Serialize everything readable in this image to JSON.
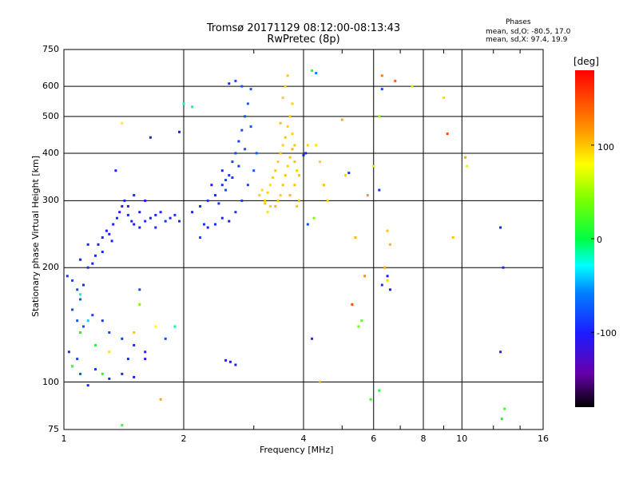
{
  "title_line1": "Tromsø 20171129 08:12:00-08:13:43",
  "title_line2": "RwPretec (8p)",
  "stats": {
    "heading": "Phases",
    "line_o": "mean, sd,O: -80.5, 17.0",
    "line_x": "mean, sd,X:  97.4, 19.9"
  },
  "colorbar": {
    "unit": "[deg]",
    "tick_labels": [
      "100",
      "0",
      "-100"
    ],
    "range": [
      -180,
      180
    ]
  },
  "chart_data": {
    "type": "scatter",
    "title": "Tromsø 20171129 08:12:00-08:13:43",
    "subtitle": "RwPretec (8p)",
    "xlabel": "Frequency [MHz]",
    "ylabel": "Stationary phase Virtual Height [km]",
    "xscale": "log",
    "yscale": "log",
    "xlim": [
      1,
      16
    ],
    "ylim": [
      75,
      750
    ],
    "xticks": [
      "1",
      "2",
      "4",
      "6",
      "8",
      "10",
      "16"
    ],
    "xtick_values": [
      1,
      2,
      4,
      6,
      8,
      10,
      16
    ],
    "yticks": [
      "75",
      "100",
      "200",
      "300",
      "400",
      "500",
      "600",
      "750"
    ],
    "ytick_values": [
      75,
      100,
      200,
      300,
      400,
      500,
      600,
      750
    ],
    "grid": true,
    "colorbar_label": "[deg]",
    "series": [
      {
        "name": "O",
        "points": [
          [
            1.02,
            190,
            -90
          ],
          [
            1.05,
            185,
            -85
          ],
          [
            1.08,
            175,
            -80
          ],
          [
            1.1,
            165,
            -75
          ],
          [
            1.12,
            180,
            -95
          ],
          [
            1.15,
            200,
            -90
          ],
          [
            1.18,
            205,
            -100
          ],
          [
            1.2,
            215,
            -95
          ],
          [
            1.22,
            230,
            -100
          ],
          [
            1.25,
            240,
            -95
          ],
          [
            1.28,
            250,
            -105
          ],
          [
            1.3,
            245,
            -100
          ],
          [
            1.33,
            260,
            -100
          ],
          [
            1.36,
            270,
            -95
          ],
          [
            1.38,
            280,
            -105
          ],
          [
            1.4,
            290,
            -110
          ],
          [
            1.42,
            300,
            -100
          ],
          [
            1.45,
            275,
            -95
          ],
          [
            1.48,
            265,
            -100
          ],
          [
            1.5,
            260,
            -105
          ],
          [
            1.55,
            255,
            -100
          ],
          [
            1.6,
            265,
            -95
          ],
          [
            1.65,
            270,
            -100
          ],
          [
            1.7,
            275,
            -100
          ],
          [
            1.75,
            280,
            -95
          ],
          [
            1.8,
            265,
            -90
          ],
          [
            1.85,
            270,
            -95
          ],
          [
            1.9,
            275,
            -90
          ],
          [
            1.95,
            265,
            -95
          ],
          [
            1.35,
            360,
            -100
          ],
          [
            1.5,
            310,
            -95
          ],
          [
            1.1,
            210,
            -100
          ],
          [
            1.15,
            230,
            -100
          ],
          [
            1.25,
            220,
            -95
          ],
          [
            1.32,
            235,
            -100
          ],
          [
            1.45,
            290,
            -110
          ],
          [
            1.55,
            280,
            -100
          ],
          [
            1.6,
            300,
            -105
          ],
          [
            1.7,
            255,
            -95
          ],
          [
            1.05,
            155,
            -80
          ],
          [
            1.08,
            145,
            -75
          ],
          [
            1.12,
            140,
            -80
          ],
          [
            1.18,
            150,
            -85
          ],
          [
            1.25,
            145,
            -90
          ],
          [
            1.3,
            135,
            -85
          ],
          [
            1.4,
            130,
            -90
          ],
          [
            1.5,
            125,
            -95
          ],
          [
            1.6,
            120,
            -100
          ],
          [
            1.05,
            110,
            -85
          ],
          [
            1.1,
            105,
            -75
          ],
          [
            1.2,
            108,
            -90
          ],
          [
            1.3,
            102,
            -95
          ],
          [
            1.4,
            105,
            -95
          ],
          [
            1.5,
            103,
            -100
          ],
          [
            1.6,
            115,
            -105
          ],
          [
            1.15,
            98,
            -100
          ],
          [
            1.03,
            120,
            -95
          ],
          [
            1.08,
            115,
            -85
          ],
          [
            1.45,
            115,
            -95
          ],
          [
            1.55,
            175,
            -85
          ],
          [
            1.65,
            440,
            -100
          ],
          [
            1.8,
            130,
            -80
          ],
          [
            1.95,
            455,
            -100
          ],
          [
            2.1,
            280,
            -100
          ],
          [
            2.2,
            290,
            -95
          ],
          [
            2.3,
            300,
            -90
          ],
          [
            2.4,
            310,
            -95
          ],
          [
            2.5,
            330,
            -90
          ],
          [
            2.55,
            340,
            -85
          ],
          [
            2.6,
            350,
            -90
          ],
          [
            2.65,
            380,
            -85
          ],
          [
            2.7,
            400,
            -80
          ],
          [
            2.75,
            430,
            -85
          ],
          [
            2.8,
            460,
            -80
          ],
          [
            2.85,
            500,
            -75
          ],
          [
            2.9,
            540,
            -70
          ],
          [
            2.95,
            590,
            -70
          ],
          [
            2.6,
            610,
            -95
          ],
          [
            2.7,
            620,
            -80
          ],
          [
            2.8,
            600,
            -75
          ],
          [
            2.5,
            270,
            -95
          ],
          [
            2.6,
            265,
            -100
          ],
          [
            2.7,
            280,
            -90
          ],
          [
            2.8,
            300,
            -85
          ],
          [
            2.9,
            330,
            -80
          ],
          [
            3.0,
            360,
            -75
          ],
          [
            3.05,
            400,
            -70
          ],
          [
            2.4,
            260,
            -95
          ],
          [
            2.3,
            255,
            -100
          ],
          [
            2.25,
            260,
            -90
          ],
          [
            2.45,
            295,
            -95
          ],
          [
            2.55,
            320,
            -85
          ],
          [
            2.65,
            345,
            -90
          ],
          [
            2.75,
            370,
            -85
          ],
          [
            2.85,
            410,
            -80
          ],
          [
            2.95,
            470,
            -75
          ],
          [
            2.62,
            113,
            -105
          ],
          [
            2.7,
            111,
            -100
          ],
          [
            2.55,
            114,
            -100
          ],
          [
            2.2,
            240,
            -85
          ],
          [
            2.35,
            330,
            -100
          ],
          [
            2.5,
            360,
            -95
          ],
          [
            4.0,
            395,
            -100
          ],
          [
            4.05,
            400,
            -105
          ],
          [
            4.1,
            260,
            -80
          ],
          [
            4.2,
            130,
            -95
          ],
          [
            4.3,
            650,
            -60
          ],
          [
            6.3,
            180,
            -95
          ],
          [
            6.5,
            190,
            -100
          ],
          [
            6.6,
            175,
            -105
          ],
          [
            6.2,
            320,
            -95
          ],
          [
            12.5,
            120,
            -110
          ],
          [
            12.5,
            255,
            -100
          ],
          [
            12.7,
            200,
            -95
          ],
          [
            6.3,
            590,
            -80
          ],
          [
            5.2,
            355,
            -90
          ]
        ]
      },
      {
        "name": "X",
        "points": [
          [
            3.1,
            310,
            95
          ],
          [
            3.15,
            320,
            90
          ],
          [
            3.2,
            300,
            100
          ],
          [
            3.25,
            315,
            95
          ],
          [
            3.3,
            330,
            90
          ],
          [
            3.35,
            345,
            95
          ],
          [
            3.4,
            360,
            100
          ],
          [
            3.45,
            380,
            95
          ],
          [
            3.5,
            400,
            100
          ],
          [
            3.55,
            420,
            95
          ],
          [
            3.6,
            440,
            100
          ],
          [
            3.65,
            470,
            95
          ],
          [
            3.7,
            500,
            100
          ],
          [
            3.75,
            540,
            95
          ],
          [
            3.4,
            290,
            105
          ],
          [
            3.45,
            300,
            100
          ],
          [
            3.5,
            310,
            95
          ],
          [
            3.55,
            330,
            100
          ],
          [
            3.6,
            350,
            100
          ],
          [
            3.65,
            370,
            95
          ],
          [
            3.7,
            390,
            100
          ],
          [
            3.75,
            410,
            105
          ],
          [
            3.8,
            380,
            100
          ],
          [
            3.85,
            360,
            95
          ],
          [
            3.8,
            330,
            100
          ],
          [
            3.9,
            300,
            105
          ],
          [
            3.85,
            290,
            100
          ],
          [
            3.6,
            600,
            95
          ],
          [
            3.65,
            640,
            100
          ],
          [
            3.55,
            560,
            95
          ],
          [
            3.5,
            480,
            100
          ],
          [
            3.3,
            290,
            95
          ],
          [
            3.25,
            280,
            90
          ],
          [
            3.2,
            295,
            100
          ],
          [
            3.7,
            310,
            105
          ],
          [
            3.8,
            420,
            100
          ],
          [
            3.75,
            450,
            95
          ],
          [
            3.9,
            350,
            100
          ],
          [
            4.3,
            420,
            90
          ],
          [
            4.4,
            380,
            95
          ],
          [
            4.5,
            330,
            100
          ],
          [
            4.6,
            300,
            95
          ],
          [
            5.0,
            490,
            110
          ],
          [
            5.1,
            350,
            95
          ],
          [
            5.4,
            240,
            105
          ],
          [
            5.8,
            310,
            115
          ],
          [
            6.5,
            250,
            100
          ],
          [
            6.6,
            230,
            105
          ],
          [
            6.4,
            200,
            110
          ],
          [
            6.5,
            185,
            95
          ],
          [
            6.3,
            640,
            130
          ],
          [
            6.8,
            620,
            140
          ],
          [
            7.5,
            600,
            60
          ],
          [
            9.0,
            560,
            90
          ],
          [
            9.2,
            450,
            150
          ],
          [
            9.5,
            240,
            100
          ],
          [
            10.2,
            390,
            110
          ],
          [
            10.3,
            370,
            70
          ],
          [
            4.2,
            660,
            10
          ],
          [
            1.3,
            120,
            90
          ],
          [
            1.5,
            135,
            100
          ],
          [
            1.7,
            140,
            80
          ],
          [
            1.75,
            90,
            110
          ],
          [
            1.4,
            480,
            85
          ],
          [
            4.1,
            420,
            95
          ],
          [
            4.4,
            100,
            105
          ],
          [
            5.7,
            190,
            120
          ],
          [
            5.5,
            140,
            40
          ],
          [
            5.6,
            145,
            30
          ],
          [
            5.3,
            160,
            150
          ],
          [
            6.2,
            95,
            10
          ],
          [
            5.9,
            90,
            20
          ],
          [
            12.8,
            85,
            20
          ],
          [
            12.6,
            80,
            0
          ],
          [
            1.4,
            77,
            20
          ],
          [
            2.1,
            530,
            -10
          ],
          [
            2.0,
            540,
            -20
          ],
          [
            1.2,
            125,
            10
          ],
          [
            1.1,
            135,
            0
          ],
          [
            1.25,
            105,
            10
          ],
          [
            1.05,
            110,
            30
          ],
          [
            1.1,
            170,
            -20
          ],
          [
            1.15,
            145,
            -40
          ],
          [
            1.55,
            160,
            40
          ],
          [
            1.9,
            140,
            -10
          ],
          [
            4.25,
            270,
            40
          ],
          [
            6.2,
            500,
            50
          ],
          [
            6.0,
            370,
            60
          ]
        ]
      }
    ]
  }
}
